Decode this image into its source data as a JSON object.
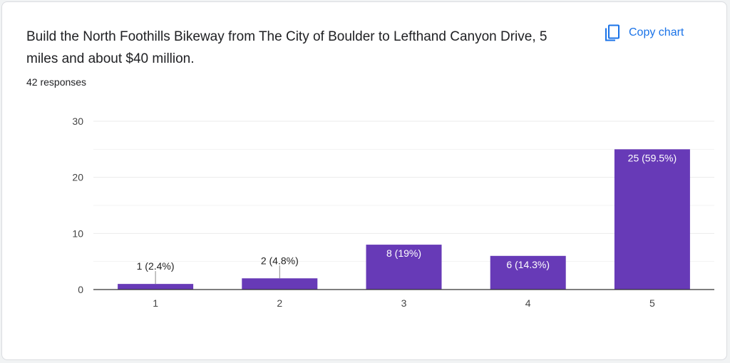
{
  "question": {
    "title": "Build the North Foothills Bikeway from The City of Boulder to Lefthand Canyon Drive, 5 miles and about $40 million.",
    "responses": "42 responses"
  },
  "actions": {
    "copy_chart_label": "Copy chart",
    "copy_icon": "copy-icon"
  },
  "colors": {
    "bar": "#673ab7",
    "grid": "#ebebeb",
    "axis": "#333333",
    "text": "#202124",
    "accent": "#1a73e8"
  },
  "chart_data": {
    "type": "bar",
    "categories": [
      "1",
      "2",
      "3",
      "4",
      "5"
    ],
    "values": [
      1,
      2,
      8,
      6,
      25
    ],
    "data_labels": [
      "1 (2.4%)",
      "2 (4.8%)",
      "8 (19%)",
      "6 (14.3%)",
      "25 (59.5%)"
    ],
    "ylim": [
      0,
      30
    ],
    "yticks": [
      0,
      10,
      20,
      30
    ],
    "grid": true,
    "xlabel": "",
    "ylabel": "",
    "title": ""
  }
}
